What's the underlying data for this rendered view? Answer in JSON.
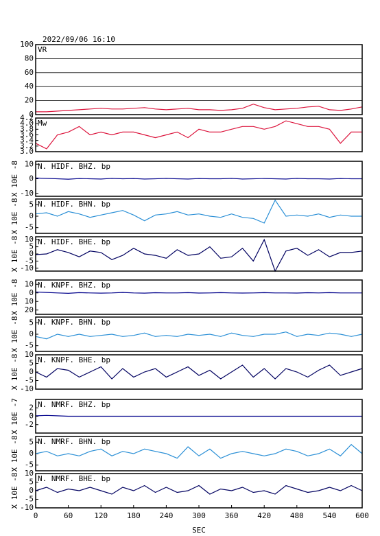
{
  "page_title": "2022/09/06 16:10",
  "chart_data": [
    {
      "type": "line",
      "title": "VR",
      "color": "#dc143c",
      "grid": true,
      "xlim": [
        0,
        600
      ],
      "ylim": [
        0,
        100
      ],
      "yticks": [
        0,
        20,
        40,
        60,
        80,
        100
      ],
      "x": [
        0,
        20,
        40,
        60,
        80,
        100,
        120,
        140,
        160,
        180,
        200,
        220,
        240,
        260,
        280,
        300,
        320,
        340,
        360,
        380,
        400,
        420,
        440,
        460,
        480,
        500,
        520,
        540,
        560,
        580,
        600
      ],
      "values": [
        4,
        4,
        5,
        6,
        7,
        8,
        9,
        8,
        8,
        9,
        10,
        8,
        7,
        8,
        9,
        7,
        7,
        6,
        7,
        9,
        15,
        10,
        7,
        8,
        9,
        11,
        12,
        7,
        6,
        8,
        11
      ]
    },
    {
      "type": "line",
      "title": "Mw",
      "color": "#dc143c",
      "grid": false,
      "xlim": [
        0,
        600
      ],
      "ylim": [
        3.0,
        4.2
      ],
      "yticks": [
        {
          "value": 3.0,
          "label": "3.0"
        },
        3.2,
        3.4,
        3.6,
        3.8,
        {
          "value": 4.0,
          "label": "4.0"
        },
        4.2
      ],
      "x": [
        0,
        20,
        40,
        60,
        80,
        100,
        120,
        140,
        160,
        180,
        200,
        220,
        240,
        260,
        280,
        300,
        320,
        340,
        360,
        380,
        400,
        420,
        440,
        460,
        480,
        500,
        520,
        540,
        560,
        580,
        600
      ],
      "values": [
        3.3,
        3.1,
        3.6,
        3.7,
        3.9,
        3.6,
        3.7,
        3.6,
        3.7,
        3.7,
        3.6,
        3.5,
        3.6,
        3.7,
        3.5,
        3.8,
        3.7,
        3.7,
        3.8,
        3.9,
        3.9,
        3.8,
        3.9,
        4.1,
        4.0,
        3.9,
        3.9,
        3.8,
        3.3,
        3.7,
        3.7
      ]
    },
    {
      "type": "line",
      "title": "N. HIDF. BHZ. bp",
      "ylabel": "X 10E -8",
      "color": "#00008b",
      "grid": false,
      "xlim": [
        0,
        600
      ],
      "ylim": [
        -12,
        12
      ],
      "yticks": [
        -10,
        0,
        10
      ],
      "x": [
        0,
        20,
        40,
        60,
        80,
        100,
        120,
        140,
        160,
        180,
        200,
        220,
        240,
        260,
        280,
        300,
        320,
        340,
        360,
        380,
        400,
        420,
        440,
        460,
        480,
        500,
        520,
        540,
        560,
        580,
        600
      ],
      "values": [
        0.5,
        0.3,
        0,
        -0.3,
        0.2,
        0,
        -0.2,
        0.3,
        0,
        0.2,
        -0.2,
        0,
        0.3,
        0,
        -0.2,
        0.2,
        0,
        0,
        0.3,
        -0.2,
        0,
        0.2,
        0,
        -0.2,
        0.3,
        0,
        0,
        -0.2,
        0.2,
        0,
        0
      ]
    },
    {
      "type": "line",
      "title": "N. HIDF. BHN. bp",
      "ylabel": "X 10E -8",
      "color": "#2a8fd6",
      "grid": false,
      "xlim": [
        0,
        600
      ],
      "ylim": [
        -7.5,
        7.5
      ],
      "yticks": [
        -5,
        0,
        5
      ],
      "x": [
        0,
        20,
        40,
        60,
        80,
        100,
        120,
        140,
        160,
        180,
        200,
        220,
        240,
        260,
        280,
        300,
        320,
        340,
        360,
        380,
        400,
        420,
        440,
        460,
        480,
        500,
        520,
        540,
        560,
        580,
        600
      ],
      "values": [
        1,
        1.5,
        0,
        2,
        1,
        -0.5,
        0.5,
        1.5,
        2.5,
        0.5,
        -2,
        0.5,
        1,
        2,
        0.5,
        1,
        0,
        -0.5,
        1,
        -0.5,
        -1,
        -3,
        7,
        0,
        0.5,
        0,
        1,
        -0.5,
        0.5,
        0,
        0
      ]
    },
    {
      "type": "line",
      "title": "N. HIDF. BHE. bp",
      "ylabel": "X 10E -8",
      "color": "#000060",
      "grid": false,
      "xlim": [
        0,
        600
      ],
      "ylim": [
        -12,
        12
      ],
      "yticks": [
        -10,
        -5,
        0,
        5,
        10
      ],
      "x": [
        0,
        20,
        40,
        60,
        80,
        100,
        120,
        140,
        160,
        180,
        200,
        220,
        240,
        260,
        280,
        300,
        320,
        340,
        360,
        380,
        400,
        420,
        440,
        460,
        480,
        500,
        520,
        540,
        560,
        580,
        600
      ],
      "values": [
        -0.5,
        0,
        3,
        1,
        -2,
        2,
        1,
        -4,
        -1,
        4,
        0,
        -1,
        -3,
        3,
        -1,
        0,
        5,
        -3,
        -2,
        4,
        -5,
        10,
        -12,
        2,
        4,
        -1,
        3,
        -2,
        1,
        1,
        2
      ]
    },
    {
      "type": "line",
      "title": "N. KNPF. BHZ. bp",
      "ylabel": "X 10E -8",
      "color": "#00008b",
      "grid": false,
      "xlim": [
        0,
        600
      ],
      "ylim": [
        -25,
        15
      ],
      "yticks": [
        {
          "value": -20,
          "label": "20"
        },
        {
          "value": -10,
          "label": "10"
        },
        0,
        10
      ],
      "x": [
        0,
        20,
        40,
        60,
        80,
        100,
        120,
        140,
        160,
        180,
        200,
        220,
        240,
        260,
        280,
        300,
        320,
        340,
        360,
        380,
        400,
        420,
        440,
        460,
        480,
        500,
        520,
        540,
        560,
        580,
        600
      ],
      "values": [
        1,
        0.5,
        0,
        -0.5,
        0.3,
        0,
        -0.3,
        0,
        0.5,
        0,
        -0.3,
        0.2,
        0,
        0,
        0.3,
        -0.2,
        0,
        0.3,
        0,
        -0.2,
        0,
        0.3,
        0,
        0,
        -0.2,
        0.2,
        0,
        0.3,
        0,
        0,
        0
      ]
    },
    {
      "type": "line",
      "title": "N. KNPF. BHN. bp",
      "ylabel": "X 10E -8",
      "color": "#2a8fd6",
      "grid": false,
      "xlim": [
        0,
        600
      ],
      "ylim": [
        -7.5,
        7.5
      ],
      "yticks": [
        -5,
        0,
        5
      ],
      "x": [
        0,
        20,
        40,
        60,
        80,
        100,
        120,
        140,
        160,
        180,
        200,
        220,
        240,
        260,
        280,
        300,
        320,
        340,
        360,
        380,
        400,
        420,
        440,
        460,
        480,
        500,
        520,
        540,
        560,
        580,
        600
      ],
      "values": [
        -1,
        -2,
        0,
        -1,
        0,
        -1,
        -0.5,
        0,
        -1,
        -0.5,
        0.5,
        -1,
        -0.5,
        -1,
        0,
        -0.5,
        0,
        -1,
        0.5,
        -0.5,
        -1,
        0,
        0,
        1,
        -1,
        0,
        -0.5,
        0.5,
        0,
        -1,
        0
      ]
    },
    {
      "type": "line",
      "title": "N. KNPF. BHE. bp",
      "ylabel": "X 10E -8",
      "color": "#000060",
      "grid": false,
      "xlim": [
        0,
        600
      ],
      "ylim": [
        -10,
        10
      ],
      "yticks": [
        -10,
        -5,
        0,
        5,
        10
      ],
      "x": [
        0,
        20,
        40,
        60,
        80,
        100,
        120,
        140,
        160,
        180,
        200,
        220,
        240,
        260,
        280,
        300,
        320,
        340,
        360,
        380,
        400,
        420,
        440,
        460,
        480,
        500,
        520,
        540,
        560,
        580,
        600
      ],
      "values": [
        0,
        -3,
        2,
        1,
        -3,
        0,
        3,
        -4,
        2,
        -3,
        0,
        2,
        -3,
        0,
        3,
        -2,
        1,
        -4,
        0,
        4,
        -3,
        2,
        -4,
        2,
        0,
        -3,
        1,
        4,
        -2,
        0,
        2
      ]
    },
    {
      "type": "line",
      "title": "N. NMRF. BHZ. bp",
      "ylabel": "X 10E -7",
      "color": "#00008b",
      "grid": false,
      "xlim": [
        0,
        600
      ],
      "ylim": [
        -4,
        4
      ],
      "yticks": [
        -2,
        0,
        2
      ],
      "x": [
        0,
        20,
        40,
        60,
        80,
        100,
        120,
        140,
        160,
        180,
        200,
        220,
        240,
        260,
        280,
        300,
        320,
        340,
        360,
        380,
        400,
        420,
        440,
        460,
        480,
        500,
        520,
        540,
        560,
        580,
        600
      ],
      "values": [
        0.1,
        0.2,
        0.1,
        0,
        0,
        0,
        0,
        0,
        0,
        0,
        0,
        0,
        0,
        0,
        0,
        0,
        0,
        0,
        0,
        0,
        0,
        0,
        0,
        0,
        0,
        0,
        0,
        0,
        0,
        0,
        0
      ]
    },
    {
      "type": "line",
      "title": "N. NMRF. BHN. bp",
      "ylabel": "X 10E -8",
      "color": "#2a8fd6",
      "grid": false,
      "xlim": [
        0,
        600
      ],
      "ylim": [
        -7.5,
        7.5
      ],
      "yticks": [
        -5,
        0,
        5
      ],
      "x": [
        0,
        20,
        40,
        60,
        80,
        100,
        120,
        140,
        160,
        180,
        200,
        220,
        240,
        260,
        280,
        300,
        320,
        340,
        360,
        380,
        400,
        420,
        440,
        460,
        480,
        500,
        520,
        540,
        560,
        580,
        600
      ],
      "values": [
        0,
        1,
        -1,
        0,
        -1,
        1,
        2,
        -1,
        1,
        0,
        2,
        1,
        0,
        -2,
        3,
        -1,
        2,
        -2,
        0,
        1,
        0,
        -1,
        0,
        2,
        1,
        -1,
        0,
        2,
        -1,
        4,
        0
      ]
    },
    {
      "type": "line",
      "title": "N. NMRF. BHE. bp",
      "ylabel": "X 10E -8",
      "xlabel": "SEC",
      "color": "#000060",
      "grid": false,
      "xlim": [
        0,
        600
      ],
      "ylim": [
        -10,
        10
      ],
      "yticks": [
        -10,
        -5,
        0,
        5,
        10
      ],
      "xticks": [
        0,
        60,
        120,
        180,
        240,
        300,
        360,
        420,
        480,
        540,
        600
      ],
      "x": [
        0,
        20,
        40,
        60,
        80,
        100,
        120,
        140,
        160,
        180,
        200,
        220,
        240,
        260,
        280,
        300,
        320,
        340,
        360,
        380,
        400,
        420,
        440,
        460,
        480,
        500,
        520,
        540,
        560,
        580,
        600
      ],
      "values": [
        0,
        2,
        -1,
        1,
        0,
        2,
        0,
        -2,
        2,
        0,
        3,
        -1,
        2,
        -1,
        0,
        3,
        -2,
        1,
        0,
        2,
        -1,
        0,
        -2,
        3,
        1,
        -1,
        0,
        2,
        0,
        3,
        0
      ]
    }
  ]
}
